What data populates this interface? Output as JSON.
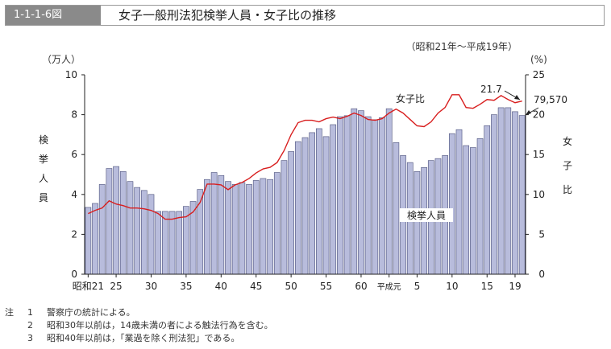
{
  "header": {
    "figure_number": "1-1-1-6図",
    "title": "女子一般刑法犯検挙人員・女子比の推移"
  },
  "chart_data": {
    "type": "bar+line",
    "period_label": "（昭和21年～平成19年）",
    "left_unit": "（万人）",
    "right_unit": "(%)",
    "left_axis_label": "検挙人員",
    "right_axis_label": "女子比",
    "left_ylim": [
      0,
      10
    ],
    "right_ylim": [
      0,
      25
    ],
    "left_ticks": [
      "0",
      "2",
      "4",
      "6",
      "8",
      "10"
    ],
    "right_ticks": [
      "0",
      "5",
      "10",
      "15",
      "20",
      "25"
    ],
    "x_tick_labels": [
      {
        "index": 0,
        "label": "昭和21"
      },
      {
        "index": 4,
        "label": "25"
      },
      {
        "index": 9,
        "label": "30"
      },
      {
        "index": 14,
        "label": "35"
      },
      {
        "index": 19,
        "label": "40"
      },
      {
        "index": 24,
        "label": "45"
      },
      {
        "index": 29,
        "label": "50"
      },
      {
        "index": 34,
        "label": "55"
      },
      {
        "index": 39,
        "label": "60"
      },
      {
        "index": 43,
        "label": "平成元"
      },
      {
        "index": 47,
        "label": "5"
      },
      {
        "index": 52,
        "label": "10"
      },
      {
        "index": 57,
        "label": "15"
      },
      {
        "index": 61,
        "label": "19"
      }
    ],
    "bar_series_name": "検挙人員",
    "line_series_name": "女子比",
    "bar_values": [
      3.35,
      3.55,
      4.5,
      5.3,
      5.4,
      5.15,
      4.65,
      4.35,
      4.2,
      4.0,
      3.15,
      3.15,
      3.15,
      3.15,
      3.4,
      3.65,
      4.25,
      4.75,
      5.1,
      4.95,
      4.65,
      4.5,
      4.6,
      4.5,
      4.7,
      4.8,
      4.75,
      5.1,
      5.7,
      6.15,
      6.65,
      6.85,
      7.1,
      7.3,
      6.9,
      7.5,
      7.9,
      7.95,
      8.3,
      8.2,
      7.9,
      7.75,
      7.85,
      8.3,
      6.6,
      5.95,
      5.6,
      5.15,
      5.35,
      5.7,
      5.8,
      5.95,
      7.05,
      7.25,
      6.45,
      6.35,
      6.8,
      7.45,
      8.0,
      8.35,
      8.35,
      8.15,
      7.96
    ],
    "line_values": [
      7.6,
      8.0,
      8.3,
      9.2,
      8.8,
      8.6,
      8.3,
      8.3,
      8.2,
      8.0,
      7.6,
      6.9,
      6.9,
      7.1,
      7.2,
      7.8,
      9.0,
      11.3,
      11.3,
      11.2,
      10.6,
      11.2,
      11.5,
      12.0,
      12.7,
      13.2,
      13.4,
      14.0,
      15.5,
      17.5,
      19.0,
      19.3,
      19.3,
      19.1,
      19.5,
      19.7,
      19.5,
      19.8,
      20.2,
      19.9,
      19.4,
      19.3,
      19.5,
      20.2,
      20.7,
      20.2,
      19.4,
      18.6,
      18.5,
      19.1,
      20.2,
      20.9,
      22.5,
      22.5,
      20.9,
      20.8,
      21.3,
      21.9,
      21.8,
      22.4,
      21.9,
      21.5,
      21.7
    ],
    "annotations": {
      "last_ratio": "21.7",
      "last_count": "79,570"
    },
    "colors": {
      "bar_fill": "#b8bcdc",
      "bar_stroke": "#4a4f7a",
      "line": "#d81e1e"
    }
  },
  "notes": [
    {
      "head": "注",
      "num": "1",
      "text": "警察庁の統計による。"
    },
    {
      "head": "",
      "num": "2",
      "text": "昭和30年以前は，14歳未満の者による触法行為を含む。"
    },
    {
      "head": "",
      "num": "3",
      "text": "昭和40年以前は，「業過を除く刑法犯」である。"
    }
  ]
}
